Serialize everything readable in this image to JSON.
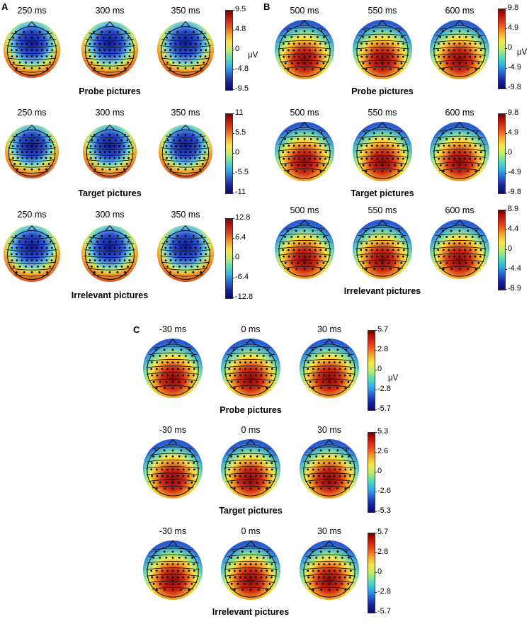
{
  "figure": {
    "panels": [
      {
        "letter": "A",
        "unit": "μV",
        "rows": [
          {
            "title": "Probe pictures",
            "times": [
              "250 ms",
              "300 ms",
              "350 ms"
            ],
            "scale": [
              "9.5",
              "4.8",
              "0",
              "-4.8",
              "-9.5"
            ],
            "polarity": "neg"
          },
          {
            "title": "Target pictures",
            "times": [
              "250 ms",
              "300 ms",
              "350 ms"
            ],
            "scale": [
              "11",
              "5.5",
              "0",
              "-5.5",
              "-11"
            ],
            "polarity": "neg"
          },
          {
            "title": "Irrelevant pictures",
            "times": [
              "250 ms",
              "300 ms",
              "350 ms"
            ],
            "scale": [
              "12.8",
              "6.4",
              "0",
              "-6.4",
              "-12.8"
            ],
            "polarity": "neg"
          }
        ]
      },
      {
        "letter": "B",
        "unit": "μV",
        "rows": [
          {
            "title": "Probe pictures",
            "times": [
              "500 ms",
              "550 ms",
              "600 ms"
            ],
            "scale": [
              "9.8",
              "4.9",
              "0",
              "-4.9",
              "-9.8"
            ],
            "polarity": "pos"
          },
          {
            "title": "Target pictures",
            "times": [
              "500 ms",
              "550 ms",
              "600 ms"
            ],
            "scale": [
              "9.8",
              "4.9",
              "0",
              "-4.9",
              "-9.8"
            ],
            "polarity": "pos"
          },
          {
            "title": "Irrelevant pictures",
            "times": [
              "500 ms",
              "550 ms",
              "600 ms"
            ],
            "scale": [
              "8.9",
              "4.4",
              "0",
              "-4.4",
              "-8.9"
            ],
            "polarity": "pos"
          }
        ]
      },
      {
        "letter": "C",
        "unit": "μV",
        "rows": [
          {
            "title": "Probe pictures",
            "times": [
              "-30 ms",
              "0 ms",
              "30 ms"
            ],
            "scale": [
              "5.7",
              "2.8",
              "0",
              "-2.8",
              "-5.7"
            ],
            "polarity": "pos"
          },
          {
            "title": "Target pictures",
            "times": [
              "-30 ms",
              "0 ms",
              "30 ms"
            ],
            "scale": [
              "5.3",
              "2.6",
              "0",
              "-2.6",
              "-5.3"
            ],
            "polarity": "pos"
          },
          {
            "title": "Irrelevant pictures",
            "times": [
              "-30 ms",
              "0 ms",
              "30 ms"
            ],
            "scale": [
              "5.7",
              "2.8",
              "0",
              "-2.8",
              "-5.7"
            ],
            "polarity": "pos"
          }
        ]
      }
    ]
  }
}
